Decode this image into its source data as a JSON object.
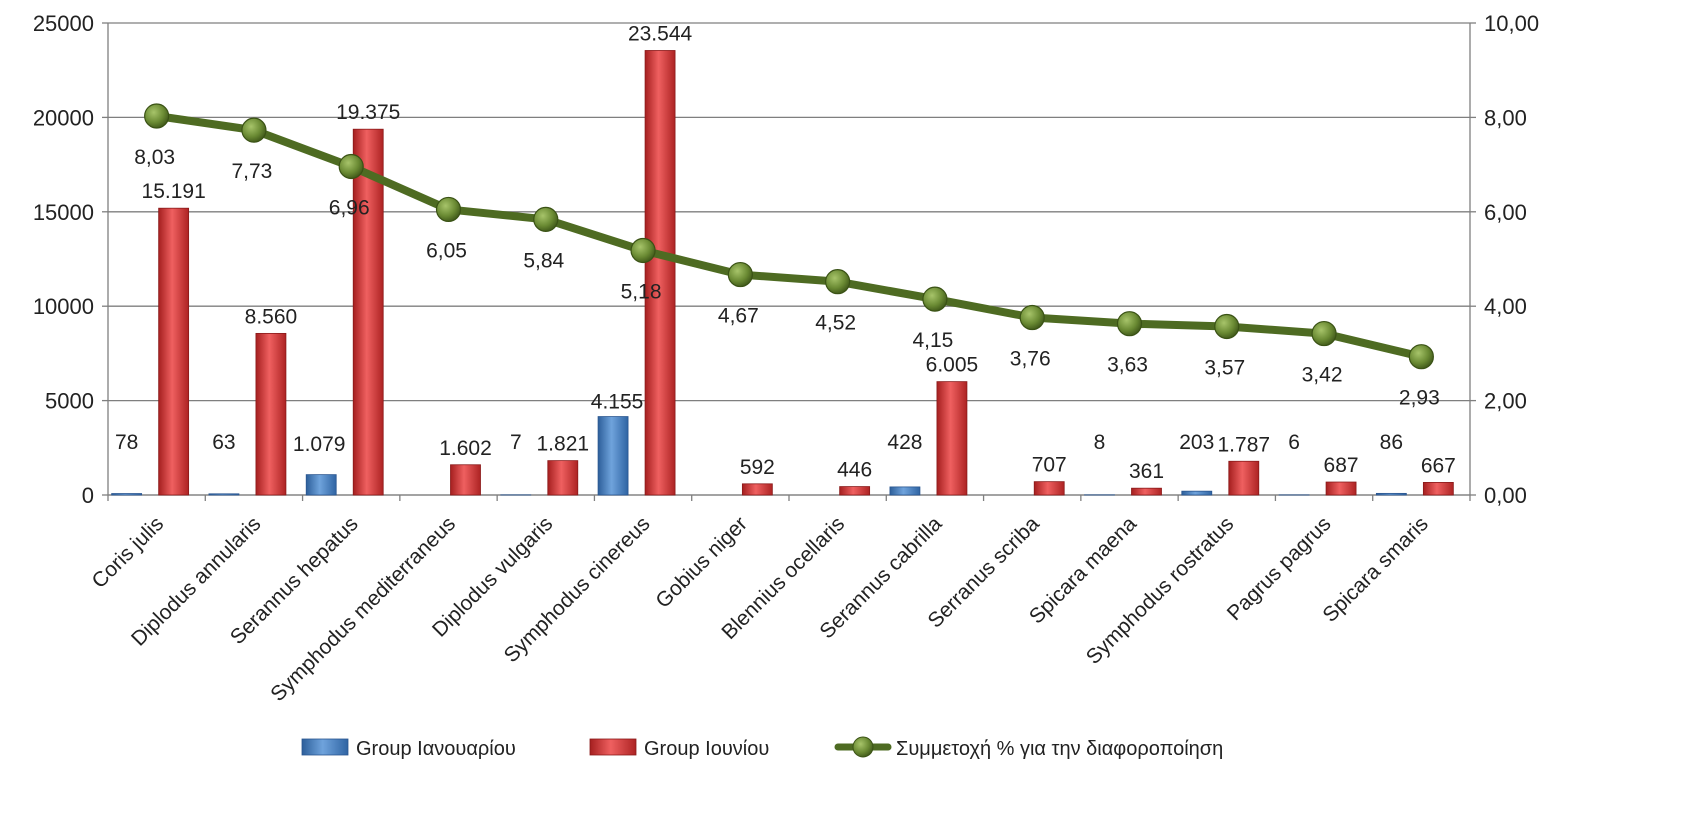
{
  "chart_data": {
    "type": "bar",
    "categories": [
      "Coris julis",
      "Diplodus annularis",
      "Serannus hepatus",
      "Symphodus mediterraneus",
      "Diplodus vulgaris",
      "Symphodus cinereus",
      "Gobius niger",
      "Blennius ocellaris",
      "Serannus cabrilla",
      "Serranus scriba",
      "Spicara maena",
      "Symphodus rostratus",
      "Pagrus pagrus",
      "Spicara smaris"
    ],
    "series": [
      {
        "name": "Group Ιανουαρίου",
        "type": "bar",
        "axis": "left",
        "color": "#4a86c8",
        "values": [
          78,
          63,
          1079,
          0,
          7,
          4155,
          0,
          0,
          428,
          0,
          8,
          203,
          6,
          86
        ],
        "labels": [
          "78",
          "63",
          "1.079",
          "",
          "7",
          "4.155",
          "",
          "",
          "428",
          "",
          "8",
          "203",
          "6",
          "86"
        ]
      },
      {
        "name": "Group Ιουνίου",
        "type": "bar",
        "axis": "left",
        "color": "#d93a3a",
        "values": [
          15191,
          8560,
          19375,
          1602,
          1821,
          23544,
          592,
          446,
          6005,
          707,
          361,
          1787,
          687,
          667
        ],
        "labels": [
          "15.191",
          "8.560",
          "19.375",
          "1.602",
          "1.821",
          "23.544",
          "592",
          "446",
          "6.005",
          "707",
          "361",
          "1.787",
          "687",
          "667"
        ]
      },
      {
        "name": "Συμμετοχή % για την διαφοροποίηση",
        "type": "line",
        "axis": "right",
        "color": "#4e6b22",
        "values": [
          8.03,
          7.73,
          6.96,
          6.05,
          5.84,
          5.18,
          4.67,
          4.52,
          4.15,
          3.76,
          3.63,
          3.57,
          3.42,
          2.93
        ],
        "labels": [
          "8,03",
          "7,73",
          "6,96",
          "6,05",
          "5,84",
          "5,18",
          "4,67",
          "4,52",
          "4,15",
          "3,76",
          "3,63",
          "3,57",
          "3,42",
          "2,93"
        ]
      }
    ],
    "ylim_left": [
      0,
      25000
    ],
    "yticks_left": [
      "0",
      "5000",
      "10000",
      "15000",
      "20000",
      "25000"
    ],
    "ylim_right": [
      0,
      10
    ],
    "yticks_right": [
      "0,00",
      "2,00",
      "4,00",
      "6,00",
      "8,00",
      "10,00"
    ],
    "grid": true,
    "legend_position": "bottom",
    "colors": {
      "grid": "#7f7f7f",
      "axis": "#7f7f7f"
    }
  }
}
